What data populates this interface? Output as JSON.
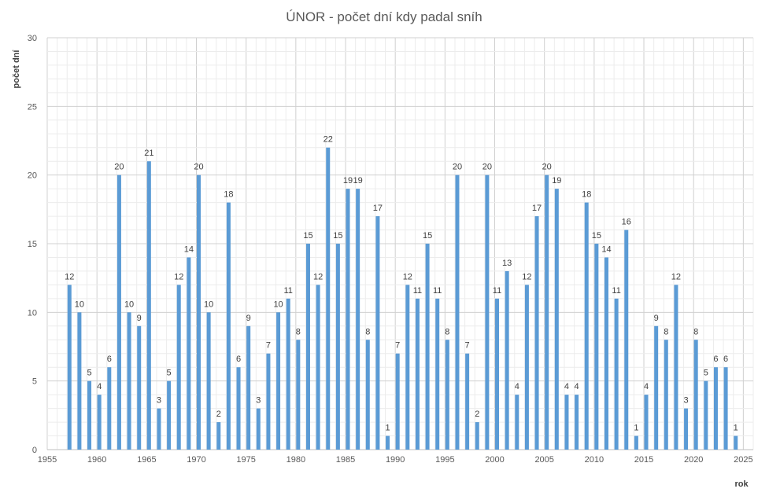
{
  "chart_data": {
    "type": "bar",
    "title": "ÚNOR - počet dní kdy padal sníh",
    "xlabel": "rok",
    "ylabel": "počet dní",
    "xlim": [
      1955,
      2026
    ],
    "ylim": [
      0,
      30
    ],
    "x_ticks": [
      1955,
      1960,
      1965,
      1970,
      1975,
      1980,
      1985,
      1990,
      1995,
      2000,
      2005,
      2010,
      2015,
      2020,
      2025
    ],
    "y_ticks": [
      0,
      5,
      10,
      15,
      20,
      25,
      30
    ],
    "grid": true,
    "legend": "none",
    "bar_color": "#5b9bd5",
    "x": [
      1957,
      1958,
      1959,
      1960,
      1961,
      1962,
      1963,
      1964,
      1965,
      1966,
      1967,
      1968,
      1969,
      1970,
      1971,
      1972,
      1973,
      1974,
      1975,
      1976,
      1977,
      1978,
      1979,
      1980,
      1981,
      1982,
      1983,
      1984,
      1985,
      1986,
      1987,
      1988,
      1989,
      1990,
      1991,
      1992,
      1993,
      1994,
      1995,
      1996,
      1997,
      1998,
      1999,
      2000,
      2001,
      2002,
      2003,
      2004,
      2005,
      2006,
      2007,
      2008,
      2009,
      2010,
      2011,
      2012,
      2013,
      2014,
      2015,
      2016,
      2017,
      2018,
      2019,
      2020,
      2021,
      2022,
      2023,
      2024
    ],
    "values": [
      12,
      10,
      5,
      4,
      6,
      20,
      10,
      9,
      21,
      3,
      5,
      12,
      14,
      20,
      10,
      2,
      18,
      6,
      9,
      3,
      7,
      10,
      11,
      8,
      15,
      12,
      22,
      15,
      19,
      19,
      8,
      17,
      1,
      7,
      12,
      11,
      15,
      11,
      8,
      20,
      7,
      2,
      20,
      11,
      13,
      4,
      12,
      17,
      20,
      19,
      4,
      4,
      18,
      15,
      14,
      11,
      16,
      1,
      4,
      9,
      8,
      12,
      3,
      8,
      5,
      6,
      6,
      1
    ]
  }
}
